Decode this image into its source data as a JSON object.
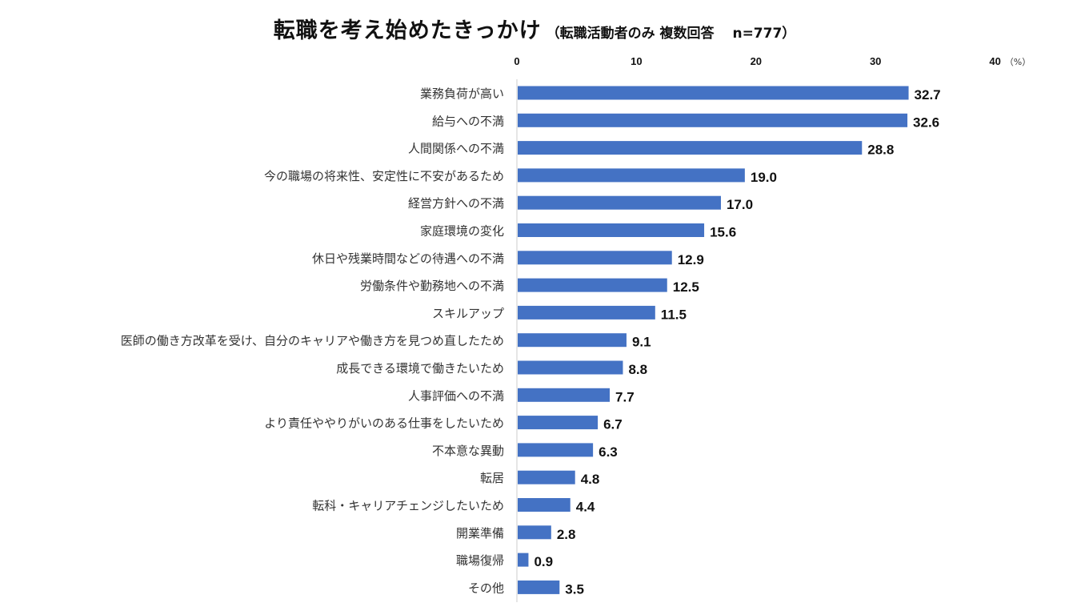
{
  "title": "転職を考え始めたきっかけ",
  "subtitle": "（転職活動者のみ 複数回答　 n=777）",
  "colors": {
    "bar": "#4472c4",
    "highlight": "#e8316e",
    "axis": "#cccccc",
    "text": "#333333"
  },
  "chart_data": {
    "type": "bar",
    "orientation": "horizontal",
    "title": "転職を考え始めたきっかけ",
    "subtitle": "（転職活動者のみ 複数回答　 n=777）",
    "unit": "（%）",
    "xlim": [
      0,
      40
    ],
    "ticks": [
      0,
      10,
      20,
      30,
      40
    ],
    "grid": false,
    "highlight_index": 0,
    "categories": [
      "業務負荷が高い",
      "給与への不満",
      "人間関係への不満",
      "今の職場の将来性、安定性に不安があるため",
      "経営方針への不満",
      "家庭環境の変化",
      "休日や残業時間などの待遇への不満",
      "労働条件や勤務地への不満",
      "スキルアップ",
      "医師の働き方改革を受け、自分のキャリアや働き方を見つめ直したため",
      "成長できる環境で働きたいため",
      "人事評価への不満",
      "より責任ややりがいのある仕事をしたいため",
      "不本意な異動",
      "転居",
      "転科・キャリアチェンジしたいため",
      "開業準備",
      "職場復帰",
      "その他"
    ],
    "values": [
      32.7,
      32.6,
      28.8,
      19.0,
      17.0,
      15.6,
      12.9,
      12.5,
      11.5,
      9.1,
      8.8,
      7.7,
      6.7,
      6.3,
      4.8,
      4.4,
      2.8,
      0.9,
      3.5
    ],
    "value_labels": [
      "32.7",
      "32.6",
      "28.8",
      "19.0",
      "17.0",
      "15.6",
      "12.9",
      "12.5",
      "11.5",
      "9.1",
      "8.8",
      "7.7",
      "6.7",
      "6.3",
      "4.8",
      "4.4",
      "2.8",
      "0.9",
      "3.5"
    ]
  }
}
